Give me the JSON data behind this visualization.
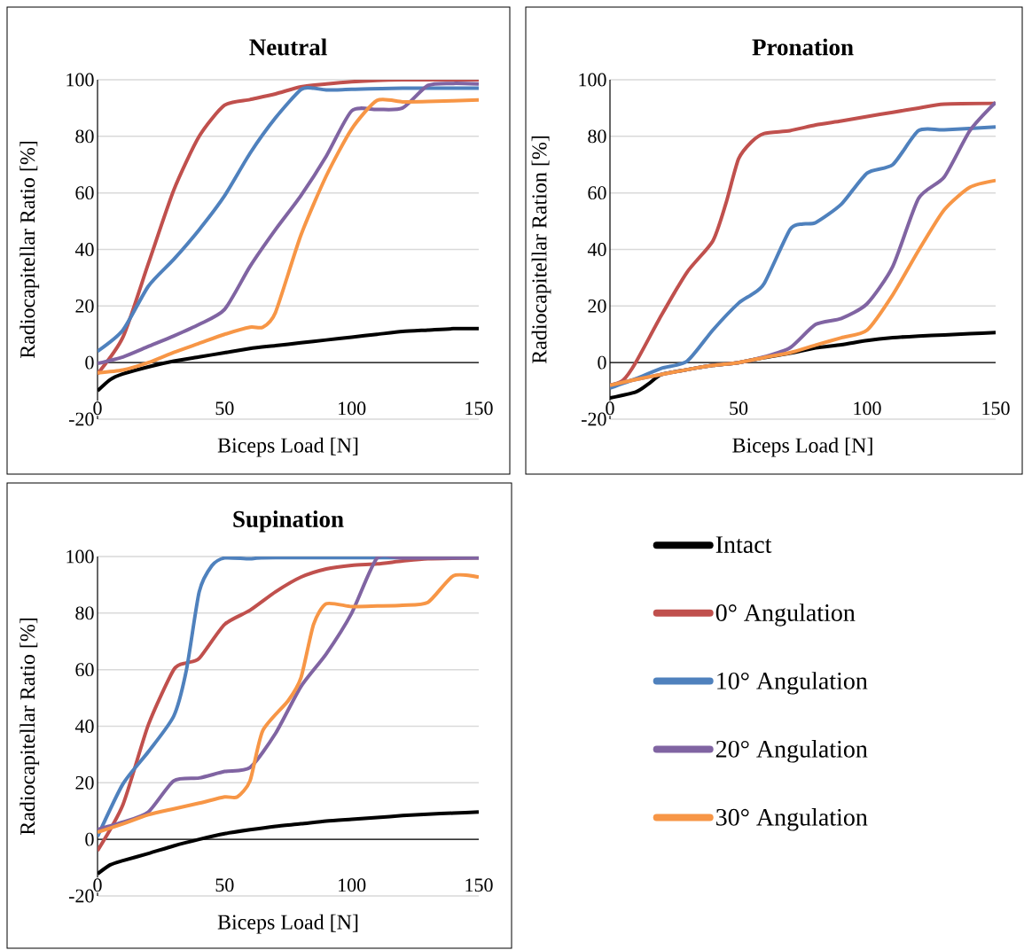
{
  "chart_data": [
    {
      "type": "line",
      "title": "Neutral",
      "xlabel": "Biceps Load [N]",
      "ylabel": "Radiocapitellar Ratio [%]",
      "xlim": [
        0,
        150
      ],
      "ylim": [
        -20,
        100
      ],
      "xticks": [
        0,
        50,
        100,
        150
      ],
      "yticks": [
        -20,
        0,
        20,
        40,
        60,
        80,
        100
      ],
      "grid": "y",
      "series": [
        {
          "color": "#000000",
          "x": [
            0,
            5,
            10,
            20,
            30,
            40,
            50,
            60,
            70,
            80,
            90,
            100,
            110,
            120,
            130,
            140,
            150
          ],
          "values": [
            -10,
            -6,
            -4,
            -1.5,
            0.5,
            2,
            3.5,
            5,
            6,
            7,
            8,
            9,
            10,
            11,
            11.5,
            12,
            12
          ]
        },
        {
          "color": "#c0504d",
          "x": [
            0,
            10,
            20,
            30,
            40,
            50,
            60,
            70,
            80,
            90,
            100,
            110,
            120,
            130,
            140,
            150
          ],
          "values": [
            -4,
            9,
            35,
            61,
            80,
            91,
            93,
            95,
            97.5,
            98.5,
            99.3,
            99.8,
            100,
            100,
            100,
            100
          ]
        },
        {
          "color": "#4f81bd",
          "x": [
            0,
            10,
            20,
            30,
            40,
            50,
            60,
            70,
            80,
            85,
            90,
            100,
            120,
            150
          ],
          "values": [
            4,
            11.5,
            27,
            36.5,
            47,
            59,
            74,
            86.5,
            96.5,
            97,
            96.4,
            96.6,
            97,
            97
          ]
        },
        {
          "color": "#8064a2",
          "x": [
            0,
            10,
            20,
            30,
            40,
            50,
            60,
            70,
            80,
            90,
            100,
            110,
            120,
            130,
            140,
            150
          ],
          "values": [
            -0.3,
            2,
            5.7,
            9.4,
            13.5,
            18.8,
            34,
            47,
            59,
            73,
            89,
            89.5,
            90,
            98,
            98.7,
            98.5
          ]
        },
        {
          "color": "#f79646",
          "x": [
            0,
            10,
            20,
            30,
            40,
            50,
            60,
            65,
            70,
            80,
            90,
            100,
            110,
            120,
            130,
            150
          ],
          "values": [
            -3.6,
            -2.6,
            0,
            3.6,
            6.8,
            10,
            12.5,
            12.5,
            17.7,
            45,
            66,
            82.6,
            92.7,
            92.2,
            92.3,
            92.9
          ]
        }
      ]
    },
    {
      "type": "line",
      "title": "Pronation",
      "xlabel": "Biceps Load [N]",
      "ylabel": "Radiocapitellar Ration [%]",
      "xlim": [
        0,
        150
      ],
      "ylim": [
        -20,
        100
      ],
      "xticks": [
        0,
        50,
        100,
        150
      ],
      "yticks": [
        -20,
        0,
        20,
        40,
        60,
        80,
        100
      ],
      "grid": "y",
      "series": [
        {
          "color": "#000000",
          "x": [
            0,
            10,
            15,
            20,
            30,
            40,
            50,
            60,
            70,
            80,
            90,
            100,
            110,
            120,
            130,
            140,
            150
          ],
          "values": [
            -12.5,
            -10.4,
            -7.5,
            -4.2,
            -2.5,
            -1,
            0,
            1.8,
            3.3,
            5.2,
            6.3,
            7.8,
            8.8,
            9.4,
            9.8,
            10.2,
            10.6
          ]
        },
        {
          "color": "#c0504d",
          "x": [
            0,
            5,
            10,
            20,
            30,
            40,
            45,
            50,
            55,
            60,
            70,
            80,
            90,
            100,
            110,
            120,
            130,
            150
          ],
          "values": [
            -8,
            -6.3,
            0,
            16.7,
            32,
            43,
            56,
            72,
            78,
            81,
            82,
            84,
            85.4,
            87,
            88.5,
            90,
            91.4,
            91.7
          ]
        },
        {
          "color": "#4f81bd",
          "x": [
            0,
            10,
            20,
            30,
            40,
            50,
            55,
            60,
            70,
            75,
            80,
            90,
            100,
            110,
            120,
            130,
            150
          ],
          "values": [
            -9,
            -5.7,
            -2,
            0.5,
            11.5,
            21,
            24,
            28,
            47,
            49,
            49.5,
            56,
            67,
            70,
            82,
            82.3,
            83.3
          ]
        },
        {
          "color": "#8064a2",
          "x": [
            0,
            10,
            20,
            30,
            40,
            50,
            60,
            70,
            80,
            90,
            100,
            110,
            120,
            130,
            140,
            150
          ],
          "values": [
            -8,
            -6,
            -4.2,
            -2.5,
            -1,
            0,
            2,
            5.2,
            13.5,
            15.6,
            20.8,
            34,
            58,
            65.6,
            82,
            92
          ]
        },
        {
          "color": "#f79646",
          "x": [
            0,
            10,
            20,
            30,
            40,
            50,
            60,
            70,
            80,
            90,
            100,
            110,
            120,
            130,
            140,
            150
          ],
          "values": [
            -8,
            -6,
            -4.2,
            -2.5,
            -1,
            0,
            1.8,
            3.5,
            6.2,
            8.8,
            11.5,
            24,
            39.6,
            54,
            62,
            64.4
          ]
        }
      ]
    },
    {
      "type": "line",
      "title": "Supination",
      "xlabel": "Biceps Load [N]",
      "ylabel": "Radiocapitellar Ratio [%]",
      "xlim": [
        0,
        150
      ],
      "ylim": [
        -20,
        100
      ],
      "xticks": [
        0,
        50,
        100,
        150
      ],
      "yticks": [
        -20,
        0,
        20,
        40,
        60,
        80,
        100
      ],
      "grid": "y",
      "legend": "right",
      "series": [
        {
          "name": "Intact",
          "color": "#000000",
          "x": [
            0,
            5,
            10,
            20,
            30,
            40,
            50,
            60,
            70,
            80,
            90,
            100,
            110,
            120,
            130,
            140,
            150
          ],
          "values": [
            -12.2,
            -9,
            -7.5,
            -5,
            -2.3,
            0,
            2,
            3.4,
            4.6,
            5.5,
            6.5,
            7.1,
            7.7,
            8.4,
            8.9,
            9.3,
            9.7
          ]
        },
        {
          "name": "0° Angulation",
          "color": "#c0504d",
          "x": [
            0,
            10,
            20,
            30,
            35,
            40,
            50,
            60,
            70,
            80,
            90,
            100,
            110,
            120,
            130,
            150
          ],
          "values": [
            -4,
            12.3,
            40.5,
            60,
            62.4,
            64,
            76,
            81,
            87.5,
            92.7,
            95.6,
            96.9,
            97.4,
            98.4,
            99.2,
            99.5
          ]
        },
        {
          "name": "10° Angulation",
          "color": "#4f81bd",
          "x": [
            0,
            10,
            20,
            30,
            35,
            40,
            45,
            50,
            60,
            70,
            150
          ],
          "values": [
            1,
            19.6,
            31,
            43.6,
            60,
            87.5,
            96.8,
            99.5,
            99.2,
            99.6,
            99.6
          ]
        },
        {
          "name": "20° Angulation",
          "color": "#8064a2",
          "x": [
            0,
            10,
            20,
            30,
            40,
            50,
            60,
            70,
            80,
            90,
            100,
            110,
            120,
            150
          ],
          "values": [
            3.5,
            6.1,
            9.7,
            20.7,
            21.7,
            24,
            25.4,
            37.4,
            54,
            65.6,
            80,
            99.5,
            99.5,
            99.5
          ]
        },
        {
          "name": "30° Angulation",
          "color": "#f79646",
          "x": [
            0,
            10,
            20,
            30,
            40,
            50,
            55,
            60,
            65,
            75,
            80,
            85,
            90,
            100,
            110,
            120,
            130,
            140,
            150
          ],
          "values": [
            2.5,
            5.5,
            8.7,
            10.8,
            12.8,
            15,
            15,
            20.7,
            38.4,
            49,
            57,
            76,
            83.3,
            82.3,
            82.5,
            82.8,
            83.8,
            93.2,
            92.7
          ]
        }
      ]
    }
  ]
}
